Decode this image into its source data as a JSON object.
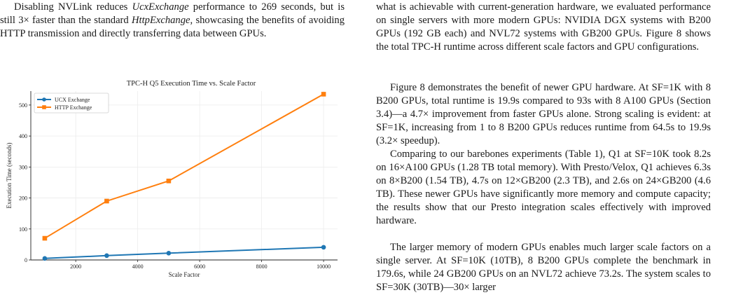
{
  "left_column": {
    "paragraph": [
      {
        "text": "Disabling NVLink reduces ",
        "em": false
      },
      {
        "text": "UcxExchange",
        "em": true
      },
      {
        "text": " performance to 269 seconds, but is still 3× faster than the standard ",
        "em": false
      },
      {
        "text": "HttpExchange",
        "em": true
      },
      {
        "text": ", showcasing the benefits of avoiding HTTP transmission and directly transferring data between GPUs.",
        "em": false
      }
    ]
  },
  "right_column": {
    "p1": "what is achievable with current-generation hardware, we evaluated performance on single servers with more modern GPUs: NVIDIA DGX systems with B200 GPUs (192 GB each) and NVL72 systems with GB200 GPUs. Figure 8 shows the total TPC-H runtime across different scale factors and GPU configurations.",
    "p2": "Figure 8 demonstrates the benefit of newer GPU hardware. At SF=1K with 8 B200 GPUs, total runtime is 19.9s compared to 93s with 8 A100 GPUs (Section 3.4)—a 4.7× improvement from faster GPUs alone. Strong scaling is evident: at SF=1K, increasing from 1 to 8 B200 GPUs reduces runtime from 64.5s to 19.9s (3.2× speedup).",
    "p3": "Comparing to our barebones experiments (Table 1), Q1 at SF=10K took 8.2s on 16×A100 GPUs (1.28 TB total memory). With Presto/Velox, Q1 achieves 6.3s on 8×B200 (1.54 TB), 4.7s on 12×GB200 (2.3 TB), and 2.6s on 24×GB200 (4.6 TB). These newer GPUs have significantly more memory and compute capacity; the results show that our Presto integration scales effectively with improved hardware.",
    "p4": "The larger memory of modern GPUs enables much larger scale factors on a single server. At SF=10K (10TB), 8 B200 GPUs complete the benchmark in 179.6s, while 24 GB200 GPUs on an NVL72 achieve 73.2s. The system scales to SF=30K (30TB)—30× larger"
  },
  "chart_data": {
    "type": "line",
    "title": "TPC-H Q5 Execution Time vs. Scale Factor",
    "xlabel": "Scale Factor",
    "ylabel": "Execution Time (seconds)",
    "xlim": [
      550,
      10450
    ],
    "ylim": [
      0,
      545
    ],
    "xticks": [
      2000,
      4000,
      6000,
      8000,
      10000
    ],
    "yticks": [
      0,
      100,
      200,
      300,
      400,
      500
    ],
    "grid": true,
    "legend_position": "top-left",
    "x": [
      1000,
      3000,
      5000,
      10000
    ],
    "series": [
      {
        "name": "UCX Exchange",
        "values": [
          5,
          14,
          22,
          41
        ],
        "color": "#1f77b4",
        "marker": "circle"
      },
      {
        "name": "HTTP Exchange",
        "values": [
          70,
          190,
          255,
          535
        ],
        "color": "#ff7f0e",
        "marker": "square"
      }
    ]
  }
}
